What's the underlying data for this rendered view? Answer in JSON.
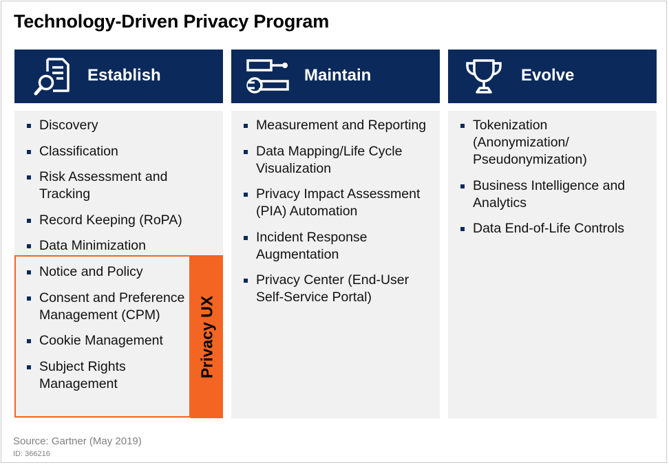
{
  "title": "Technology-Driven Privacy Program",
  "columns": [
    {
      "header": "Establish",
      "icon": "document-magnifier-icon",
      "items": [
        "Discovery",
        "Classification",
        "Risk Assessment and Tracking",
        "Record Keeping (RoPA)",
        "Data Minimization"
      ],
      "privacy_ux_items": [
        "Notice and Policy",
        "Consent and Preference Management (CPM)",
        "Cookie Management",
        "Subject Rights Management"
      ]
    },
    {
      "header": "Maintain",
      "icon": "tools-icon",
      "items": [
        "Measurement and Reporting",
        "Data Mapping/Life Cycle Visualization",
        "Privacy Impact Assessment (PIA) Automation",
        "Incident Response Augmentation",
        "Privacy Center (End-User Self-Service Portal)"
      ]
    },
    {
      "header": "Evolve",
      "icon": "trophy-icon",
      "items": [
        "Tokenization (Anonymization/ Pseudonymization)",
        "Business Intelligence and Analytics",
        "Data End-of-Life Controls"
      ]
    }
  ],
  "privacy_ux_label": "Privacy UX",
  "source": "Source: Gartner (May 2019)",
  "id": "ID: 366216",
  "colors": {
    "header": "#0b2a5b",
    "accent": "#f26522",
    "panel": "#f1f1f1"
  }
}
